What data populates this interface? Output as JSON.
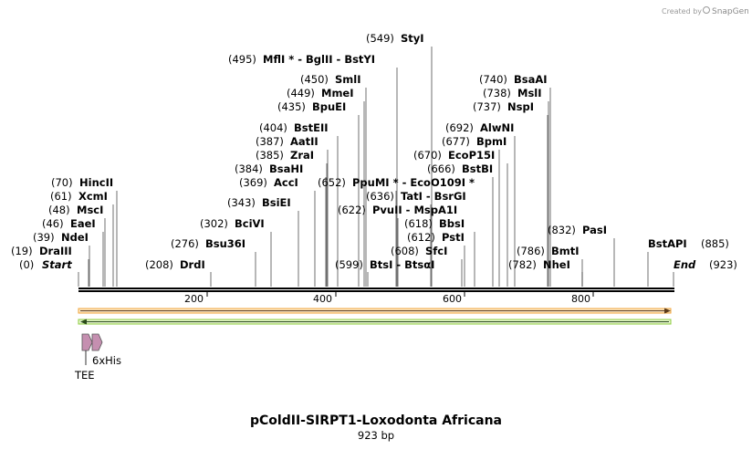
{
  "credit": {
    "created_by": "Created by",
    "brand": "SnapGene"
  },
  "title": "pColdII-SIRPT1-Loxodonta Africana",
  "length_label": "923 bp",
  "sequence_length": 923,
  "ticks": [
    "200",
    "400",
    "600",
    "800"
  ],
  "ends": {
    "start": {
      "pos": "(0)",
      "label": "Start"
    },
    "end": {
      "pos": "(923)",
      "label": "End"
    }
  },
  "sites": [
    {
      "pos": "(19)",
      "name": "DraIII"
    },
    {
      "pos": "(39)",
      "name": "NdeI"
    },
    {
      "pos": "(46)",
      "name": "EaeI"
    },
    {
      "pos": "(48)",
      "name": "MscI"
    },
    {
      "pos": "(61)",
      "name": "XcmI"
    },
    {
      "pos": "(70)",
      "name": "HincII"
    },
    {
      "pos": "(208)",
      "name": "DrdI"
    },
    {
      "pos": "(276)",
      "name": "Bsu36I"
    },
    {
      "pos": "(302)",
      "name": "BciVI"
    },
    {
      "pos": "(343)",
      "name": "BsiEI"
    },
    {
      "pos": "(369)",
      "name": "AccI"
    },
    {
      "pos": "(384)",
      "name": "BsaHI"
    },
    {
      "pos": "(385)",
      "name": "ZraI"
    },
    {
      "pos": "(387)",
      "name": "AatII"
    },
    {
      "pos": "(404)",
      "name": "BstEII"
    },
    {
      "pos": "(435)",
      "name": "BpuEI"
    },
    {
      "pos": "(449)",
      "name": "MmeI"
    },
    {
      "pos": "(450)",
      "name": "SmlI"
    },
    {
      "pos": "(495)",
      "name": "MflI * - BglII  - BstYI"
    },
    {
      "pos": "(549)",
      "name": "StyI"
    },
    {
      "pos": "(599)",
      "name": "BtsI  - BtsαI"
    },
    {
      "pos": "(652)",
      "name": "PpuMI * - EcoO109I *"
    },
    {
      "pos": "(636)",
      "name": "TatI  - BsrGI"
    },
    {
      "pos": "(622)",
      "name": "PvuII  - MspA1I"
    },
    {
      "pos": "(618)",
      "name": "BbsI"
    },
    {
      "pos": "(612)",
      "name": "PstI"
    },
    {
      "pos": "(608)",
      "name": "SfcI"
    },
    {
      "pos": "(666)",
      "name": "BstBI"
    },
    {
      "pos": "(670)",
      "name": "EcoP15I"
    },
    {
      "pos": "(677)",
      "name": "BpmI"
    },
    {
      "pos": "(692)",
      "name": "AlwNI"
    },
    {
      "pos": "(737)",
      "name": "NspI"
    },
    {
      "pos": "(738)",
      "name": "MslI"
    },
    {
      "pos": "(740)",
      "name": "BsaAI"
    },
    {
      "pos": "(832)",
      "name": "PasI"
    },
    {
      "pos": "(786)",
      "name": "BmtI"
    },
    {
      "pos": "(782)",
      "name": "NheI"
    },
    {
      "pos": "(885)",
      "name": "BstAPI"
    }
  ],
  "features": [
    {
      "name": "TEE",
      "color": "#c58fb0"
    },
    {
      "name": "6xHis",
      "color": "#c58fb0"
    }
  ],
  "colors": {
    "forward_arrow": "#f0a63b",
    "reverse_arrow": "#8ccc3d",
    "backbone": "#000000"
  }
}
